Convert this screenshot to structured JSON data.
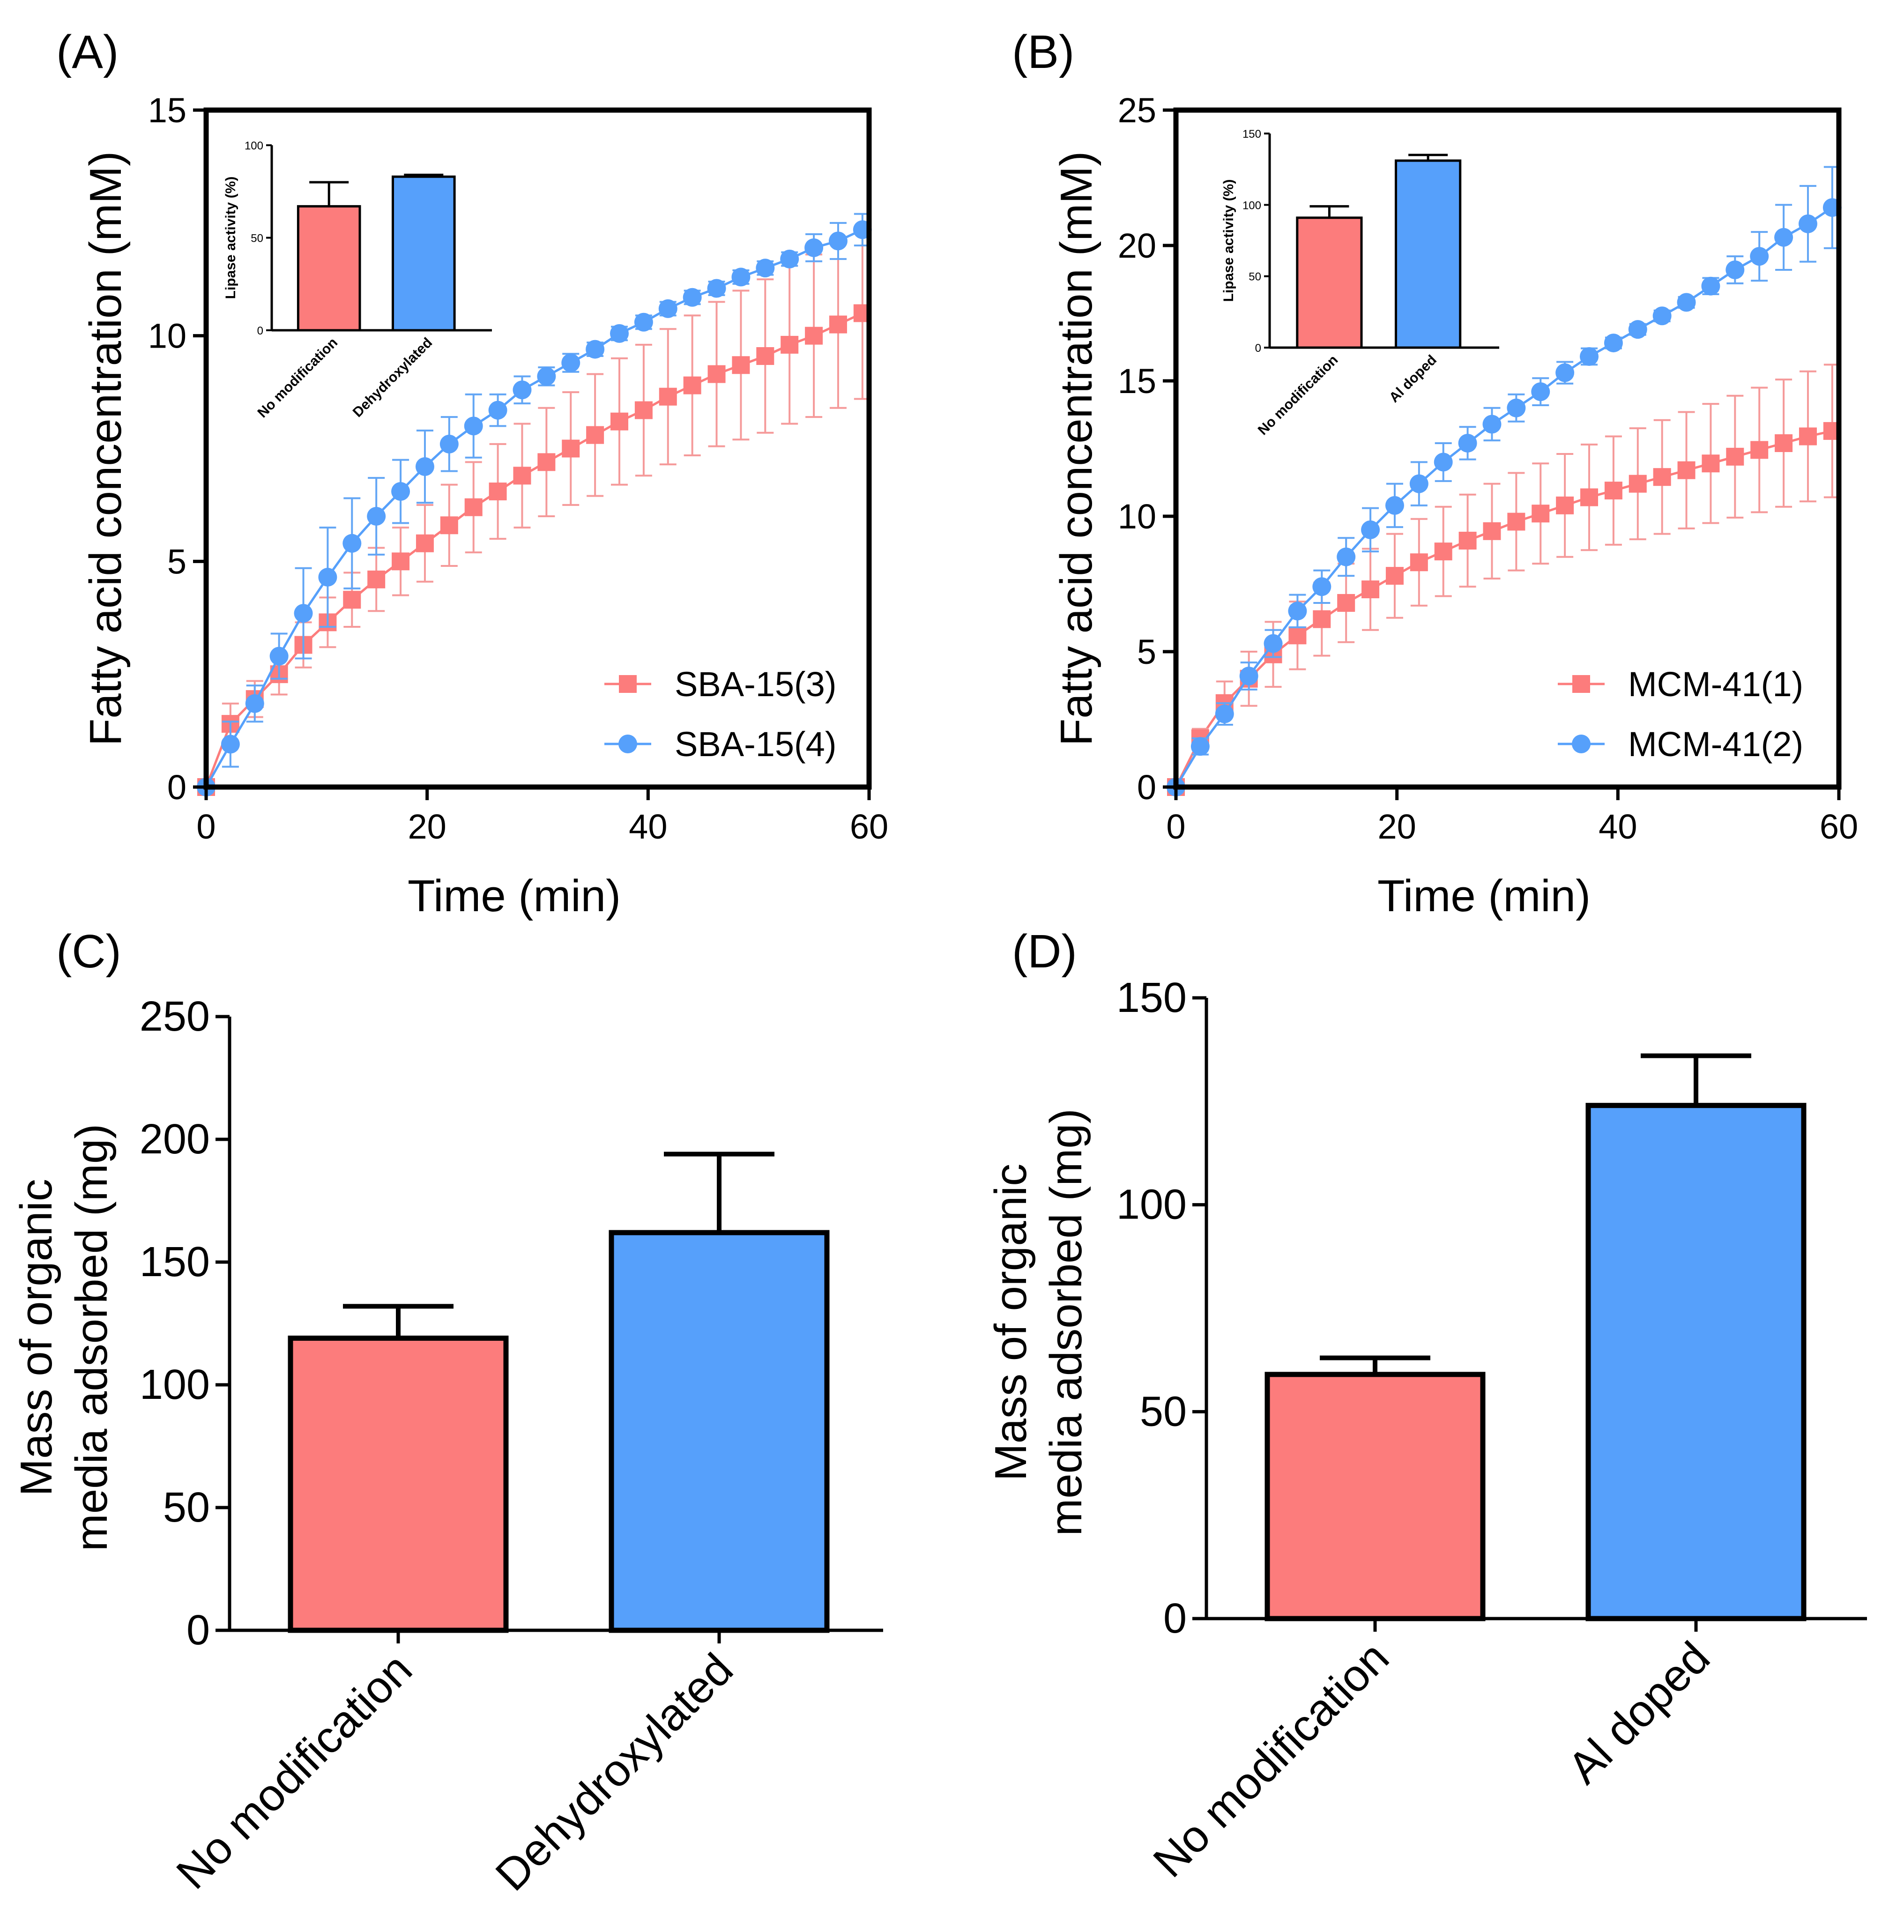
{
  "colors": {
    "red": "#FC7C7C",
    "blue": "#56A0FB",
    "red_err": "#F59A9A",
    "blue_err": "#63A6F5",
    "axis": "#000000"
  },
  "chart_data": [
    {
      "id": "A",
      "type": "line",
      "panel_label": "(A)",
      "title": "",
      "xlabel": "Time (min)",
      "ylabel": "Fatty acid concentration (mM)",
      "xlim": [
        0,
        60
      ],
      "ylim": [
        0,
        15
      ],
      "xticks": [
        0,
        20,
        40,
        60
      ],
      "yticks": [
        0,
        5,
        10,
        15
      ],
      "grid": false,
      "legend_position": "bottom-right",
      "series": [
        {
          "name": "SBA-15(3)",
          "color": "red",
          "marker": "square",
          "x": [
            0,
            2.2,
            4.4,
            6.6,
            8.8,
            11,
            13.2,
            15.4,
            17.6,
            19.8,
            22,
            24.2,
            26.4,
            28.6,
            30.8,
            33,
            35.2,
            37.4,
            39.6,
            41.8,
            44,
            46.2,
            48.4,
            50.6,
            52.8,
            55,
            57.2,
            59.4
          ],
          "y": [
            0,
            1.4,
            1.95,
            2.5,
            3.15,
            3.65,
            4.15,
            4.6,
            5,
            5.4,
            5.8,
            6.2,
            6.55,
            6.9,
            7.2,
            7.5,
            7.8,
            8.1,
            8.35,
            8.65,
            8.9,
            9.15,
            9.35,
            9.55,
            9.8,
            10,
            10.25,
            10.5
          ],
          "err": [
            0,
            0.45,
            0.4,
            0.45,
            0.5,
            0.55,
            0.6,
            0.7,
            0.75,
            0.85,
            0.9,
            1,
            1.05,
            1.15,
            1.2,
            1.25,
            1.35,
            1.4,
            1.45,
            1.5,
            1.55,
            1.6,
            1.65,
            1.7,
            1.75,
            1.8,
            1.85,
            1.9
          ]
        },
        {
          "name": "SBA-15(4)",
          "color": "blue",
          "marker": "circle",
          "x": [
            0,
            2.2,
            4.4,
            6.6,
            8.8,
            11,
            13.2,
            15.4,
            17.6,
            19.8,
            22,
            24.2,
            26.4,
            28.6,
            30.8,
            33,
            35.2,
            37.4,
            39.6,
            41.8,
            44,
            46.2,
            48.4,
            50.6,
            52.8,
            55,
            57.2,
            59.4
          ],
          "y": [
            0,
            0.95,
            1.85,
            2.9,
            3.85,
            4.65,
            5.4,
            6,
            6.55,
            7.1,
            7.6,
            8,
            8.35,
            8.8,
            9.1,
            9.4,
            9.7,
            10.05,
            10.3,
            10.6,
            10.85,
            11.05,
            11.3,
            11.5,
            11.7,
            11.95,
            12.1,
            12.35
          ],
          "err": [
            0,
            0.5,
            0.4,
            0.5,
            1,
            1.1,
            1,
            0.85,
            0.7,
            0.8,
            0.6,
            0.7,
            0.35,
            0.3,
            0.2,
            0.2,
            0.15,
            0.15,
            0.15,
            0.15,
            0.15,
            0.15,
            0.15,
            0.15,
            0.15,
            0.3,
            0.4,
            0.35
          ]
        }
      ],
      "inset": {
        "type": "bar",
        "ylabel": "Lipase activity (%)",
        "ylim": [
          0,
          100
        ],
        "yticks": [
          0,
          50,
          100
        ],
        "categories": [
          "No modification",
          "Dehydroxylated"
        ],
        "values": [
          67,
          83
        ],
        "err": [
          13,
          1
        ],
        "colors": [
          "red",
          "blue"
        ]
      }
    },
    {
      "id": "B",
      "type": "line",
      "panel_label": "(B)",
      "title": "",
      "xlabel": "Time (min)",
      "ylabel": "Fatty acid concentration (mM)",
      "xlim": [
        0,
        60
      ],
      "ylim": [
        0,
        25
      ],
      "xticks": [
        0,
        20,
        40,
        60
      ],
      "yticks": [
        0,
        5,
        10,
        15,
        20,
        25
      ],
      "grid": false,
      "legend_position": "bottom-right",
      "series": [
        {
          "name": "MCM-41(1)",
          "color": "red",
          "marker": "square",
          "x": [
            0,
            2.2,
            4.4,
            6.6,
            8.8,
            11,
            13.2,
            15.4,
            17.6,
            19.8,
            22,
            24.2,
            26.4,
            28.6,
            30.8,
            33,
            35.2,
            37.4,
            39.6,
            41.8,
            44,
            46.2,
            48.4,
            50.6,
            52.8,
            55,
            57.2,
            59.4
          ],
          "y": [
            0,
            1.8,
            3.1,
            4,
            4.9,
            5.6,
            6.2,
            6.8,
            7.3,
            7.8,
            8.3,
            8.7,
            9.1,
            9.45,
            9.8,
            10.1,
            10.4,
            10.7,
            10.95,
            11.2,
            11.45,
            11.7,
            11.95,
            12.2,
            12.45,
            12.7,
            12.95,
            13.15
          ],
          "err": [
            0,
            0.35,
            0.8,
            1,
            1.2,
            1.25,
            1.35,
            1.45,
            1.5,
            1.55,
            1.6,
            1.65,
            1.7,
            1.75,
            1.8,
            1.85,
            1.9,
            1.95,
            2,
            2.05,
            2.1,
            2.15,
            2.2,
            2.25,
            2.3,
            2.35,
            2.4,
            2.45
          ]
        },
        {
          "name": "MCM-41(2)",
          "color": "blue",
          "marker": "circle",
          "x": [
            0,
            2.2,
            4.4,
            6.6,
            8.8,
            11,
            13.2,
            15.4,
            17.6,
            19.8,
            22,
            24.2,
            26.4,
            28.6,
            30.8,
            33,
            35.2,
            37.4,
            39.6,
            41.8,
            44,
            46.2,
            48.4,
            50.6,
            52.8,
            55,
            57.2,
            59.4
          ],
          "y": [
            0,
            1.5,
            2.7,
            4.1,
            5.3,
            6.5,
            7.4,
            8.5,
            9.5,
            10.4,
            11.2,
            12,
            12.7,
            13.4,
            14,
            14.6,
            15.3,
            15.9,
            16.4,
            16.9,
            17.4,
            17.9,
            18.5,
            19.1,
            19.6,
            20.3,
            20.8,
            21.4
          ],
          "err": [
            0,
            0.3,
            0.4,
            0.5,
            0.5,
            0.6,
            0.6,
            0.7,
            0.8,
            0.8,
            0.8,
            0.7,
            0.6,
            0.6,
            0.5,
            0.5,
            0.4,
            0.3,
            0.2,
            0.2,
            0.2,
            0.2,
            0.3,
            0.5,
            0.9,
            1.2,
            1.4,
            1.5
          ]
        }
      ],
      "inset": {
        "type": "bar",
        "ylabel": "Lipase activity (%)",
        "ylim": [
          0,
          150
        ],
        "yticks": [
          0,
          50,
          100,
          150
        ],
        "categories": [
          "No modification",
          "Al doped"
        ],
        "values": [
          91,
          131
        ],
        "err": [
          8,
          4
        ],
        "colors": [
          "red",
          "blue"
        ]
      }
    },
    {
      "id": "C",
      "type": "bar",
      "panel_label": "(C)",
      "title": "",
      "xlabel": "",
      "ylabel_lines": [
        "Mass of organic",
        "media adsorbed (mg)"
      ],
      "ylim": [
        0,
        250
      ],
      "yticks": [
        0,
        50,
        100,
        150,
        200,
        250
      ],
      "grid": false,
      "categories": [
        "No modification",
        "Dehydroxylated"
      ],
      "values": [
        119,
        162
      ],
      "err": [
        13,
        32
      ],
      "colors": [
        "red",
        "blue"
      ]
    },
    {
      "id": "D",
      "type": "bar",
      "panel_label": "(D)",
      "title": "",
      "xlabel": "",
      "ylabel_lines": [
        "Mass of organic",
        "media adsorbed (mg)"
      ],
      "ylim": [
        0,
        150
      ],
      "yticks": [
        0,
        50,
        100,
        150
      ],
      "grid": false,
      "categories": [
        "No modification",
        "Al doped"
      ],
      "values": [
        59,
        124
      ],
      "err": [
        4,
        12
      ],
      "colors": [
        "red",
        "blue"
      ]
    }
  ]
}
